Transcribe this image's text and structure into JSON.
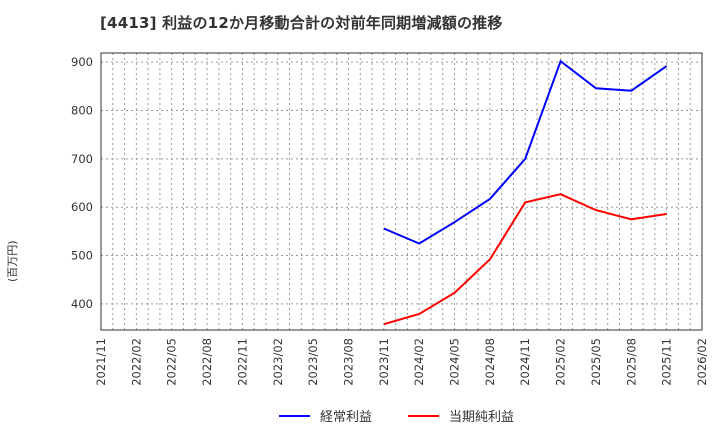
{
  "title": "[4413]  利益の12か月移動合計の対前年同期増減額の推移",
  "y_axis_label": "(百万円)",
  "legend": [
    {
      "label": "経常利益",
      "color": "#0000ff"
    },
    {
      "label": "当期純利益",
      "color": "#ff0000"
    }
  ],
  "chart_data": {
    "type": "line",
    "title": "[4413]  利益の12か月移動合計の対前年同期増減額の推移",
    "xlabel": "",
    "ylabel": "(百万円)",
    "ylim": [
      346,
      919
    ],
    "yticks": [
      400,
      500,
      600,
      700,
      800,
      900
    ],
    "grid": true,
    "legend_position": "bottom",
    "x_tick_labels": [
      "2021/11",
      "2022/02",
      "2022/05",
      "2022/08",
      "2022/11",
      "2023/02",
      "2023/05",
      "2023/08",
      "2023/11",
      "2024/02",
      "2024/05",
      "2024/08",
      "2024/11",
      "2025/02",
      "2025/05",
      "2025/08",
      "2025/11",
      "2026/02"
    ],
    "x": [
      "2023/11",
      "2024/02",
      "2024/05",
      "2024/08",
      "2024/11",
      "2025/02",
      "2025/05",
      "2025/08",
      "2025/11"
    ],
    "series": [
      {
        "name": "経常利益",
        "color": "#0000ff",
        "values": [
          556,
          525,
          569,
          617,
          700,
          902,
          846,
          841,
          892
        ]
      },
      {
        "name": "当期純利益",
        "color": "#ff0000",
        "values": [
          358,
          379,
          423,
          492,
          610,
          627,
          594,
          575,
          586
        ]
      }
    ]
  }
}
